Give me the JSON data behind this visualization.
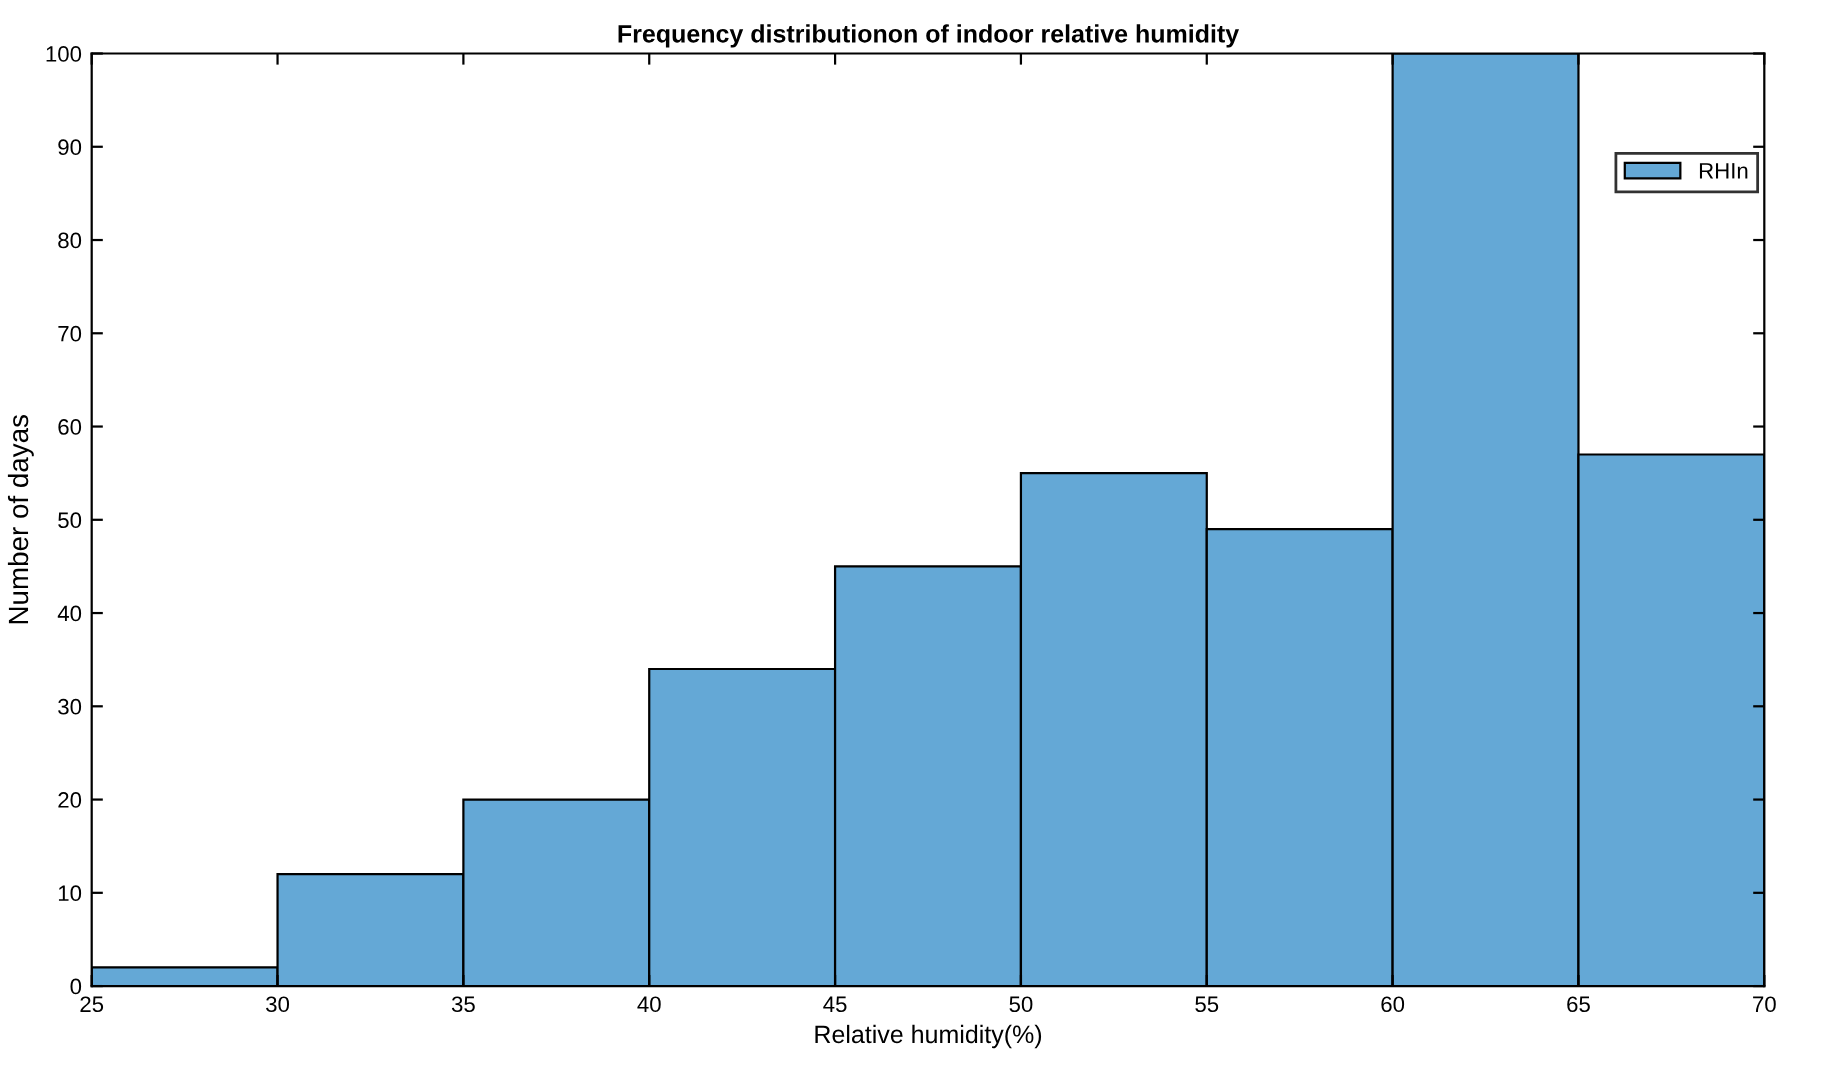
{
  "chart_data": {
    "type": "histogram",
    "title": "Frequency distributionon of indoor relative humidity",
    "xlabel": "Relative humidity(%)",
    "ylabel": "Number of dayas",
    "bins": [
      25,
      30,
      35,
      40,
      45,
      50,
      55,
      60,
      65,
      70
    ],
    "series": [
      {
        "name": "RHIn",
        "color": "#64a8d6",
        "values": [
          2,
          12,
          20,
          34,
          45,
          55,
          49,
          100,
          57
        ]
      }
    ],
    "xlim": [
      25,
      70
    ],
    "xticks": [
      25,
      30,
      35,
      40,
      45,
      50,
      55,
      60,
      65,
      70
    ],
    "ylim": [
      0,
      100
    ],
    "yticks": [
      0,
      10,
      20,
      30,
      40,
      50,
      60,
      70,
      80,
      90,
      100
    ],
    "grid": false,
    "legend": "top right"
  }
}
